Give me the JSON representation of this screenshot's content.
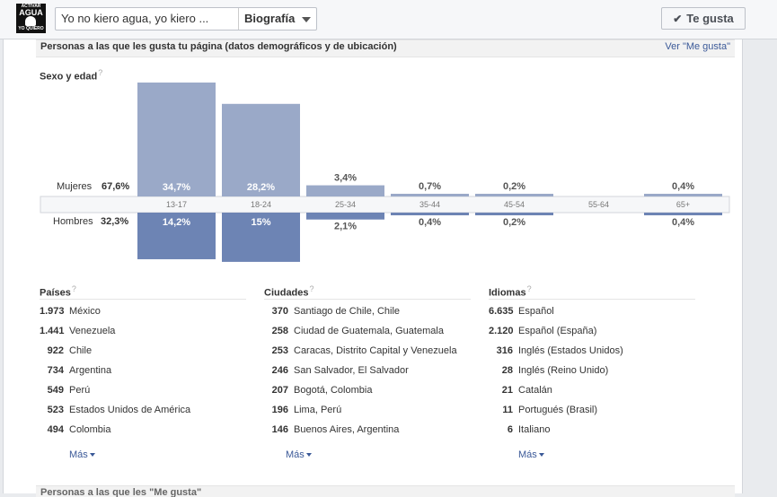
{
  "header": {
    "logo": {
      "line1": "ACTIVAR",
      "line2": "AGUA",
      "line3": "YO QUIERO"
    },
    "page_name": "Yo no kiero agua, yo kiero ...",
    "tab_label": "Biografía",
    "like_button": "Te gusta",
    "like_icon": "checkmark-icon"
  },
  "section": {
    "title": "Personas a las que les gusta tu página (datos demográficos y de ubicación)",
    "link": "Ver \"Me gusta\""
  },
  "gender_age": {
    "title": "Sexo y edad",
    "help": "?",
    "women": {
      "label": "Mujeres",
      "pct": "67,6%"
    },
    "men": {
      "label": "Hombres",
      "pct": "32,3%"
    }
  },
  "chart_data": {
    "type": "bar",
    "title": "Sexo y edad",
    "categories": [
      "13-17",
      "18-24",
      "25-34",
      "35-44",
      "45-54",
      "55-64",
      "65+"
    ],
    "series": [
      {
        "name": "Mujeres",
        "values": [
          34.7,
          28.2,
          3.4,
          0.7,
          0.2,
          0,
          0.4
        ],
        "labels": [
          "34,7%",
          "28,2%",
          "3,4%",
          "0,7%",
          "0,2%",
          "",
          "0,4%"
        ],
        "color": "#9aa9c8"
      },
      {
        "name": "Hombres",
        "values": [
          14.2,
          15.0,
          2.1,
          0.4,
          0.2,
          0,
          0.4
        ],
        "labels": [
          "14,2%",
          "15%",
          "2,1%",
          "0,4%",
          "0,2%",
          "",
          "0,4%"
        ],
        "color": "#6d84b4"
      }
    ],
    "ylim": [
      0,
      34.7
    ]
  },
  "countries": {
    "title": "Países",
    "rows": [
      {
        "count": "1.973",
        "name": "México"
      },
      {
        "count": "1.441",
        "name": "Venezuela"
      },
      {
        "count": "922",
        "name": "Chile"
      },
      {
        "count": "734",
        "name": "Argentina"
      },
      {
        "count": "549",
        "name": "Perú"
      },
      {
        "count": "523",
        "name": "Estados Unidos de América"
      },
      {
        "count": "494",
        "name": "Colombia"
      }
    ],
    "more": "Más"
  },
  "cities": {
    "title": "Ciudades",
    "rows": [
      {
        "count": "370",
        "name": "Santiago de Chile, Chile"
      },
      {
        "count": "258",
        "name": "Ciudad de Guatemala, Guatemala"
      },
      {
        "count": "253",
        "name": "Caracas, Distrito Capital y Venezuela"
      },
      {
        "count": "246",
        "name": "San Salvador, El Salvador"
      },
      {
        "count": "207",
        "name": "Bogotá, Colombia"
      },
      {
        "count": "196",
        "name": "Lima, Perú"
      },
      {
        "count": "146",
        "name": "Buenos Aires, Argentina"
      }
    ],
    "more": "Más"
  },
  "languages": {
    "title": "Idiomas",
    "rows": [
      {
        "count": "6.635",
        "name": "Español"
      },
      {
        "count": "2.120",
        "name": "Español (España)"
      },
      {
        "count": "316",
        "name": "Inglés (Estados Unidos)"
      },
      {
        "count": "28",
        "name": "Inglés (Reino Unido)"
      },
      {
        "count": "21",
        "name": "Catalán"
      },
      {
        "count": "11",
        "name": "Portugués (Brasil)"
      },
      {
        "count": "6",
        "name": "Italiano"
      }
    ],
    "more": "Más"
  },
  "next_section": {
    "title": "Personas a las que les \"Me gusta\""
  }
}
